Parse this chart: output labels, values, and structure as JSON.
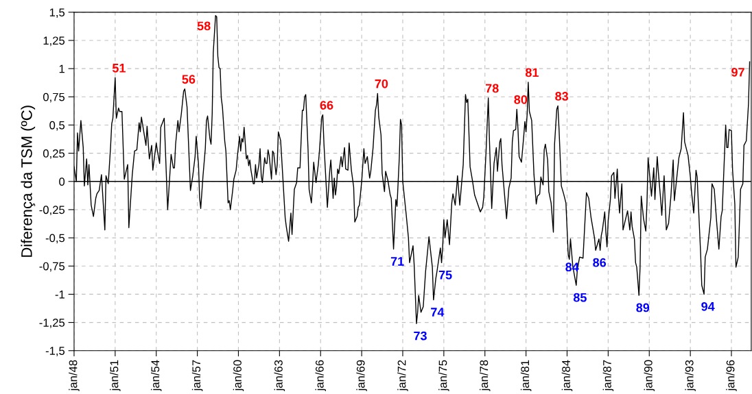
{
  "chart_data": {
    "type": "line",
    "ylabel": "Diferença da TSM (ºC)",
    "xlim": [
      "1948-01",
      "1997-06-13"
    ],
    "ylim": [
      -1.5,
      1.5
    ],
    "xticks": [
      {
        "value": "1948-01",
        "label": "jan/48"
      },
      {
        "value": "1951-01",
        "label": "jan/51"
      },
      {
        "value": "1954-01",
        "label": "jan/54"
      },
      {
        "value": "1957-01",
        "label": "jan/57"
      },
      {
        "value": "1960-01",
        "label": "jan/60"
      },
      {
        "value": "1963-01",
        "label": "jan/63"
      },
      {
        "value": "1966-01",
        "label": "jan/66"
      },
      {
        "value": "1969-01",
        "label": "jan/69"
      },
      {
        "value": "1972-01",
        "label": "jan/72"
      },
      {
        "value": "1975-01",
        "label": "jan/75"
      },
      {
        "value": "1978-01",
        "label": "jan/78"
      },
      {
        "value": "1981-01",
        "label": "jan/81"
      },
      {
        "value": "1984-01",
        "label": "jan/84"
      },
      {
        "value": "1987-01",
        "label": "jan/87"
      },
      {
        "value": "1990-01",
        "label": "jan/90"
      },
      {
        "value": "1993-01",
        "label": "jan/93"
      },
      {
        "value": "1996-01",
        "label": "jan/96"
      }
    ],
    "yticks": [
      {
        "value": -1.5,
        "label": "-1,5"
      },
      {
        "value": -1.25,
        "label": "-1,25"
      },
      {
        "value": -1,
        "label": "-1"
      },
      {
        "value": -0.75,
        "label": "-0,75"
      },
      {
        "value": -0.5,
        "label": "-0,5"
      },
      {
        "value": -0.25,
        "label": "-0,25"
      },
      {
        "value": 0,
        "label": "0"
      },
      {
        "value": 0.25,
        "label": "0,25"
      },
      {
        "value": 0.5,
        "label": "0,5"
      },
      {
        "value": 0.75,
        "label": "0,75"
      },
      {
        "value": 1,
        "label": "1"
      },
      {
        "value": 1.25,
        "label": "1,25"
      },
      {
        "value": 1.5,
        "label": "1,5"
      }
    ],
    "grid": true,
    "marker": "none",
    "line_style": "solid",
    "ref_lines": [
      {
        "axis": "y",
        "value": 0,
        "color": "#000000"
      }
    ],
    "series": [
      {
        "color": "#000000",
        "x": [
          "1948-01",
          "1948-03",
          "1948-04",
          "1948-05",
          "1948-07",
          "1948-09",
          "1948-10",
          "1948-12",
          "1949-01",
          "1949-02",
          "1949-04",
          "1949-06",
          "1949-08",
          "1949-09",
          "1949-11",
          "1950-01",
          "1950-04",
          "1950-05",
          "1950-07",
          "1950-09",
          "1950-10",
          "1950-11",
          "1951-01",
          "1951-02",
          "1951-04",
          "1951-05",
          "1951-07",
          "1951-09",
          "1951-12",
          "1952-01",
          "1952-04",
          "1952-06",
          "1952-08",
          "1952-10",
          "1952-11",
          "1952-12",
          "1953-04",
          "1953-05",
          "1953-07",
          "1953-09",
          "1953-10",
          "1954-01",
          "1954-02",
          "1954-04",
          "1954-05",
          "1954-08",
          "1954-11",
          "1955-02",
          "1955-04",
          "1955-05",
          "1955-06",
          "1955-08",
          "1955-09",
          "1955-11",
          "1956-01",
          "1956-02",
          "1956-04",
          "1956-07",
          "1956-09",
          "1956-11",
          "1956-12",
          "1957-02",
          "1957-03",
          "1957-04",
          "1957-06",
          "1957-08",
          "1957-09",
          "1957-10",
          "1957-12",
          "1958-01",
          "1958-02",
          "1958-03",
          "1958-05",
          "1958-06",
          "1958-07",
          "1958-08",
          "1958-09",
          "1958-10",
          "1958-11",
          "1959-01",
          "1959-02",
          "1959-04",
          "1959-05",
          "1959-06",
          "1959-08",
          "1959-09",
          "1959-11",
          "1959-12",
          "1960-02",
          "1960-03",
          "1960-04",
          "1960-05",
          "1960-06",
          "1960-08",
          "1960-09",
          "1960-10",
          "1960-11",
          "1960-12",
          "1961-02",
          "1961-03",
          "1961-04",
          "1961-05",
          "1961-07",
          "1961-08",
          "1961-09",
          "1961-10",
          "1961-12",
          "1962-01",
          "1962-02",
          "1962-03",
          "1962-04",
          "1962-06",
          "1962-07",
          "1962-08",
          "1962-10",
          "1962-11",
          "1962-12",
          "1963-02",
          "1963-04",
          "1963-06",
          "1963-07",
          "1963-09",
          "1963-11",
          "1963-12",
          "1964-02",
          "1964-04",
          "1964-05",
          "1964-07",
          "1964-09",
          "1964-10",
          "1964-11",
          "1964-12",
          "1965-02",
          "1965-03",
          "1965-05",
          "1965-06",
          "1965-07",
          "1965-09",
          "1965-11",
          "1965-12",
          "1966-02",
          "1966-03",
          "1966-04",
          "1966-07",
          "1966-09",
          "1966-10",
          "1966-12",
          "1967-01",
          "1967-02",
          "1967-03",
          "1967-04",
          "1967-05",
          "1967-07",
          "1967-08",
          "1967-10",
          "1967-11",
          "1968-01",
          "1968-02",
          "1968-04",
          "1968-06",
          "1968-07",
          "1968-09",
          "1968-10",
          "1968-11",
          "1969-01",
          "1969-03",
          "1969-04",
          "1969-06",
          "1969-08",
          "1969-09",
          "1969-11",
          "1970-01",
          "1970-02",
          "1970-03",
          "1970-04",
          "1970-06",
          "1970-07",
          "1970-09",
          "1970-10",
          "1970-12",
          "1971-02",
          "1971-03",
          "1971-05",
          "1971-07",
          "1971-08",
          "1971-10",
          "1971-11",
          "1971-12",
          "1972-01",
          "1972-04",
          "1972-06",
          "1972-07",
          "1972-09",
          "1972-10",
          "1972-11",
          "1973-01",
          "1973-02",
          "1973-03",
          "1973-05",
          "1973-07",
          "1973-09",
          "1973-12",
          "1974-03",
          "1974-04",
          "1974-06",
          "1974-07",
          "1974-10",
          "1974-11",
          "1974-12",
          "1975-01",
          "1975-02",
          "1975-04",
          "1975-06",
          "1975-08",
          "1975-09",
          "1975-11",
          "1976-01",
          "1976-03",
          "1976-06",
          "1976-08",
          "1976-09",
          "1976-10",
          "1976-12",
          "1977-02",
          "1977-04",
          "1977-09",
          "1977-11",
          "1977-12",
          "1978-02",
          "1978-04",
          "1978-05",
          "1978-07",
          "1978-09",
          "1978-11",
          "1978-12",
          "1979-02",
          "1979-03",
          "1979-04",
          "1979-08",
          "1979-10",
          "1979-12",
          "1980-01",
          "1980-02",
          "1980-04",
          "1980-05",
          "1980-06",
          "1980-07",
          "1980-09",
          "1980-11",
          "1980-12",
          "1981-01",
          "1981-02",
          "1981-03",
          "1981-04",
          "1981-06",
          "1981-08",
          "1981-10",
          "1981-11",
          "1982-01",
          "1982-02",
          "1982-04",
          "1982-05",
          "1982-06",
          "1982-08",
          "1982-09",
          "1982-11",
          "1983-01",
          "1983-02",
          "1983-04",
          "1983-05",
          "1983-06",
          "1983-08",
          "1983-10",
          "1983-12",
          "1984-02",
          "1984-03",
          "1984-04",
          "1984-06",
          "1984-09",
          "1984-10",
          "1984-12",
          "1985-03",
          "1985-06",
          "1985-08",
          "1985-10",
          "1986-01",
          "1986-02",
          "1986-05",
          "1986-06",
          "1986-07",
          "1986-08",
          "1986-10",
          "1986-11",
          "1986-12",
          "1987-01",
          "1987-03",
          "1987-04",
          "1987-06",
          "1987-07",
          "1987-09",
          "1987-10",
          "1987-11",
          "1988-01",
          "1988-02",
          "1988-06",
          "1988-08",
          "1988-09",
          "1988-10",
          "1988-12",
          "1989-01",
          "1989-02",
          "1989-04",
          "1989-05",
          "1989-06",
          "1989-08",
          "1989-10",
          "1989-11",
          "1989-12",
          "1990-03",
          "1990-05",
          "1990-06",
          "1990-08",
          "1990-09",
          "1990-11",
          "1990-12",
          "1991-02",
          "1991-04",
          "1991-06",
          "1991-08",
          "1991-10",
          "1991-11",
          "1992-03",
          "1992-05",
          "1992-07",
          "1992-08",
          "1992-10",
          "1992-11",
          "1993-01",
          "1993-02",
          "1993-04",
          "1993-06",
          "1993-07",
          "1993-10",
          "1993-11",
          "1994-01",
          "1994-02",
          "1994-04",
          "1994-07",
          "1994-08",
          "1994-10",
          "1994-12",
          "1995-02",
          "1995-04",
          "1995-05",
          "1995-07",
          "1995-08",
          "1995-09",
          "1995-10",
          "1995-11",
          "1996-01",
          "1996-02",
          "1996-04",
          "1996-05",
          "1996-07",
          "1996-09",
          "1996-11",
          "1996-12",
          "1997-02",
          "1997-04",
          "1997-05"
        ],
        "values": [
          0.13,
          0.0,
          0.43,
          0.27,
          0.54,
          0.3,
          -0.04,
          0.2,
          -0.03,
          0.15,
          -0.21,
          -0.31,
          -0.15,
          -0.11,
          -0.08,
          0.06,
          -0.43,
          0.05,
          -0.02,
          0.31,
          0.51,
          0.56,
          0.92,
          0.56,
          0.65,
          0.62,
          0.62,
          0.02,
          0.15,
          -0.41,
          0.06,
          0.27,
          0.28,
          0.52,
          0.44,
          0.57,
          0.32,
          0.49,
          0.2,
          0.32,
          0.1,
          0.34,
          0.27,
          0.16,
          0.48,
          0.56,
          -0.25,
          0.24,
          0.12,
          0.12,
          0.33,
          0.54,
          0.44,
          0.6,
          0.8,
          0.82,
          0.66,
          -0.08,
          0.05,
          0.22,
          0.4,
          0.15,
          -0.14,
          -0.24,
          0.05,
          0.29,
          0.54,
          0.58,
          0.38,
          0.33,
          0.6,
          1.14,
          1.47,
          1.46,
          1.11,
          1.01,
          1.0,
          0.74,
          0.66,
          0.36,
          0.27,
          -0.19,
          -0.17,
          -0.25,
          -0.08,
          0.02,
          0.1,
          0.21,
          0.4,
          0.27,
          0.38,
          0.35,
          0.48,
          0.2,
          0.23,
          0.14,
          0.19,
          0.1,
          -0.02,
          -0.02,
          0.15,
          0.03,
          0.15,
          0.29,
          0.05,
          -0.01,
          0.21,
          0.16,
          0.16,
          0.28,
          0.23,
          0.02,
          0.27,
          0.25,
          0.06,
          0.15,
          0.44,
          0.36,
          0.03,
          -0.32,
          -0.4,
          -0.53,
          -0.28,
          -0.47,
          -0.07,
          -0.01,
          0.12,
          0.12,
          0.63,
          0.63,
          0.75,
          0.77,
          0.28,
          -0.07,
          -0.19,
          -0.03,
          0.17,
          -0.01,
          0.15,
          0.27,
          0.57,
          0.59,
          0.33,
          -0.23,
          0.09,
          0.19,
          -0.15,
          0.03,
          -0.12,
          -0.05,
          0.11,
          0.07,
          0.22,
          0.13,
          0.3,
          0.11,
          0.1,
          0.34,
          0.1,
          -0.05,
          -0.36,
          -0.31,
          -0.23,
          -0.21,
          0.0,
          0.29,
          0.16,
          0.22,
          0.03,
          0.09,
          0.3,
          0.63,
          0.68,
          0.78,
          0.57,
          0.41,
          0.07,
          -0.09,
          0.09,
          0.01,
          -0.12,
          -0.15,
          -0.6,
          -0.16,
          -0.22,
          0.21,
          0.55,
          0.5,
          0.0,
          -0.29,
          -0.5,
          -0.72,
          -0.62,
          -0.57,
          -0.74,
          -1.26,
          -1.16,
          -1.01,
          -1.16,
          -1.11,
          -0.8,
          -0.49,
          -0.76,
          -1.05,
          -0.86,
          -0.8,
          -0.59,
          -0.72,
          -0.58,
          -0.34,
          -0.5,
          -0.34,
          -0.56,
          -0.19,
          -0.11,
          -0.21,
          0.05,
          -0.21,
          0.15,
          0.77,
          0.7,
          0.73,
          0.13,
          0.01,
          -0.12,
          -0.27,
          -0.23,
          -0.14,
          0.27,
          0.74,
          0.37,
          -0.24,
          0.16,
          0.3,
          0.09,
          0.35,
          0.38,
          0.15,
          -0.33,
          -0.06,
          0.03,
          0.35,
          0.45,
          0.46,
          0.64,
          0.46,
          0.22,
          0.17,
          0.4,
          0.53,
          0.44,
          0.6,
          0.88,
          0.62,
          0.54,
          0.06,
          -0.2,
          -0.13,
          -0.11,
          0.04,
          -0.03,
          0.28,
          0.33,
          0.19,
          -0.09,
          -0.19,
          -0.45,
          0.33,
          0.64,
          0.67,
          0.46,
          -0.04,
          -0.11,
          -0.19,
          -0.65,
          -0.69,
          -0.51,
          -0.75,
          -0.92,
          -0.78,
          -0.67,
          -0.68,
          -0.1,
          -0.15,
          -0.32,
          -0.5,
          -0.61,
          -0.51,
          -0.61,
          -0.48,
          -0.43,
          -0.27,
          -0.45,
          -0.58,
          -0.35,
          -0.16,
          0.05,
          0.08,
          -0.15,
          0.11,
          -0.13,
          -0.28,
          -0.02,
          -0.43,
          -0.26,
          -0.43,
          -0.27,
          -0.4,
          -0.51,
          -0.72,
          -0.76,
          -1.01,
          -0.76,
          -0.13,
          -0.33,
          -0.44,
          -0.19,
          0.21,
          -0.13,
          0.12,
          -0.16,
          0.22,
          0.08,
          -0.16,
          -0.3,
          0.05,
          -0.43,
          -0.37,
          -0.13,
          0.19,
          -0.17,
          0.21,
          0.29,
          0.61,
          0.35,
          0.27,
          0.23,
          0.04,
          -0.09,
          -0.28,
          0.1,
          0.04,
          -0.63,
          -0.92,
          -1.0,
          -0.67,
          -0.6,
          -0.32,
          -0.02,
          -0.07,
          -0.35,
          -0.6,
          -0.31,
          -0.26,
          0.24,
          0.5,
          0.3,
          0.3,
          0.46,
          0.45,
          0.1,
          -0.2,
          -0.76,
          -0.67,
          -0.07,
          -0.02,
          0.32,
          0.36,
          0.69,
          1.06
        ]
      }
    ],
    "annotations": [
      {
        "text": "51",
        "x": "1951-01",
        "y": 0.92
      },
      {
        "text": "58",
        "x": "1958-05",
        "y": 1.47
      },
      {
        "text": "56",
        "x": "1956-02",
        "y": 0.82
      },
      {
        "text": "66",
        "x": "1966-03",
        "y": 0.59
      },
      {
        "text": "70",
        "x": "1970-03",
        "y": 0.78
      },
      {
        "text": "78",
        "x": "1978-04",
        "y": 0.74
      },
      {
        "text": "80",
        "x": "1980-05",
        "y": 0.64
      },
      {
        "text": "81",
        "x": "1981-03",
        "y": 0.88
      },
      {
        "text": "83",
        "x": "1983-05",
        "y": 0.67
      },
      {
        "text": "97",
        "x": "1997-05",
        "y": 1.06
      },
      {
        "text": "71",
        "x": "1971-05",
        "y": -0.6
      },
      {
        "text": "73",
        "x": "1973-01",
        "y": -1.26
      },
      {
        "text": "74",
        "x": "1974-04",
        "y": -1.05
      },
      {
        "text": "75",
        "x": "1974-11",
        "y": -0.72
      },
      {
        "text": "84",
        "x": "1984-02",
        "y": -0.65
      },
      {
        "text": "85",
        "x": "1984-09",
        "y": -0.92
      },
      {
        "text": "86",
        "x": "1986-02",
        "y": -0.61
      },
      {
        "text": "89",
        "x": "1989-04",
        "y": -1.01
      },
      {
        "text": "94",
        "x": "1994-01",
        "y": -1.0
      }
    ]
  }
}
